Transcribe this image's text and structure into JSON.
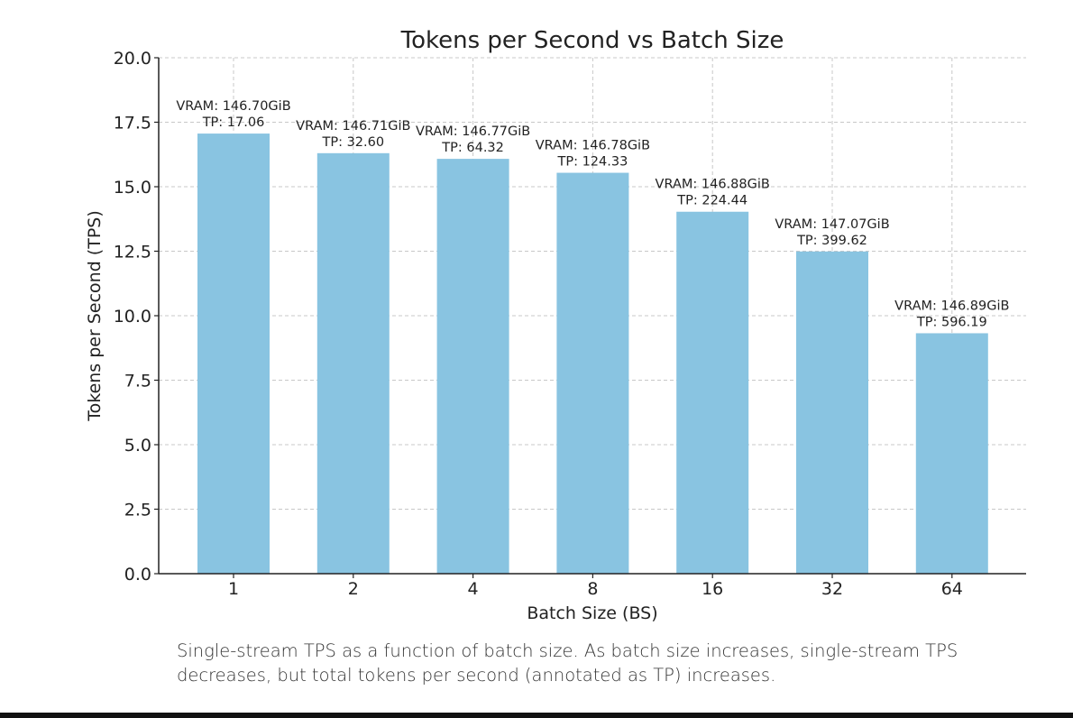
{
  "chart_data": {
    "type": "bar",
    "title": "Tokens per Second vs Batch Size",
    "xlabel": "Batch Size (BS)",
    "ylabel": "Tokens per Second (TPS)",
    "categories": [
      "1",
      "2",
      "4",
      "8",
      "16",
      "32",
      "64"
    ],
    "values": [
      17.06,
      16.3,
      16.08,
      15.54,
      14.03,
      12.49,
      9.32
    ],
    "annotations": [
      [
        "VRAM: 146.70GiB",
        "TP: 17.06"
      ],
      [
        "VRAM: 146.71GiB",
        "TP: 32.60"
      ],
      [
        "VRAM: 146.77GiB",
        "TP: 64.32"
      ],
      [
        "VRAM: 146.78GiB",
        "TP: 124.33"
      ],
      [
        "VRAM: 146.88GiB",
        "TP: 224.44"
      ],
      [
        "VRAM: 147.07GiB",
        "TP: 399.62"
      ],
      [
        "VRAM: 146.89GiB",
        "TP: 596.19"
      ]
    ],
    "ylim": [
      0,
      20
    ],
    "yticks": [
      "0.0",
      "2.5",
      "5.0",
      "7.5",
      "10.0",
      "12.5",
      "15.0",
      "17.5",
      "20.0"
    ],
    "grid": true,
    "bar_color": "#89c4e1"
  },
  "caption": "Single-stream TPS as a function of batch size. As batch size increases, single-stream TPS decreases, but total tokens per second (annotated as TP) increases."
}
